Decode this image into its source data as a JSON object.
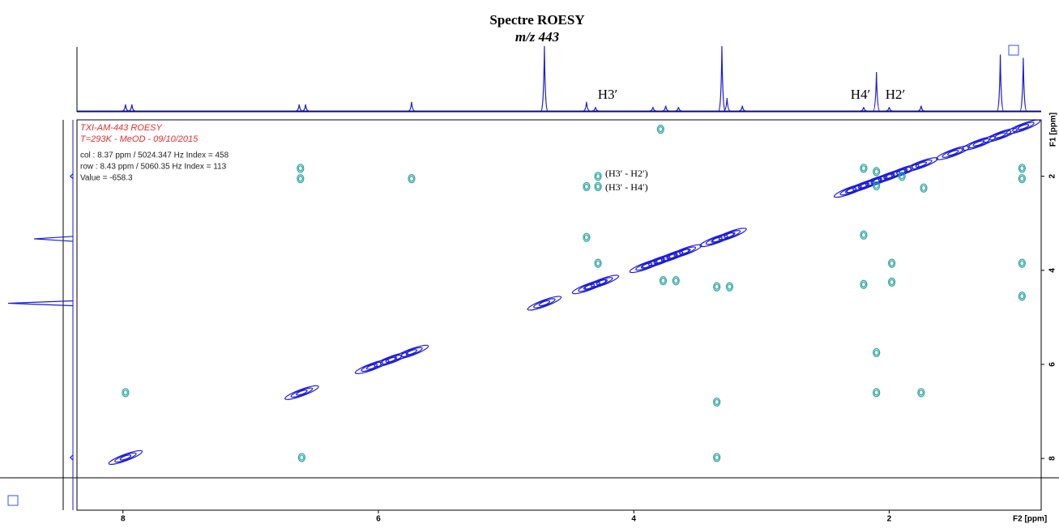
{
  "chart_data": {
    "type": "contour",
    "title": "Spectre ROESY",
    "subtitle": "m/z 443",
    "x_label": "F2 [ppm]",
    "y_label": "F1 [ppm]",
    "xlim": [
      8.36,
      0.81
    ],
    "ylim": [
      0.8,
      9.1
    ],
    "xticks": [
      8,
      6,
      4,
      2
    ],
    "yticks": [
      2,
      4,
      6,
      8
    ],
    "info_lines": [
      "TXI-AM-443 ROESY",
      "T=293K - MeOD - 09/10/2015",
      "col : 8.37 ppm / 5024.347 Hz Index = 458",
      "row : 8.43 ppm / 5060.35 Hz Index = 113",
      "Value = -658.3"
    ],
    "peak_labels": [
      "H3′",
      "H4′",
      "H2′"
    ],
    "annotations": [
      "(H3′ - H2′)",
      "(H3′ - H4′)"
    ],
    "series": [
      {
        "color": "#1a1ad6",
        "x": [
          0.95,
          1.13,
          1.3,
          1.5,
          1.75,
          1.9,
          2.0,
          2.1,
          2.2,
          2.3,
          3.25,
          3.35,
          3.6,
          3.7,
          3.8,
          3.9,
          4.25,
          4.35,
          4.7,
          5.74,
          5.9,
          6.05,
          6.6,
          7.98
        ],
        "values": [
          0.95,
          1.13,
          1.3,
          1.5,
          1.75,
          1.9,
          2.0,
          2.1,
          2.2,
          2.3,
          3.25,
          3.35,
          3.6,
          3.7,
          3.8,
          3.9,
          4.25,
          4.35,
          4.7,
          5.74,
          5.9,
          6.05,
          6.6,
          7.98
        ]
      },
      {
        "color": "#2aa5a0",
        "x": [
          6.61,
          6.61,
          5.74,
          4.37,
          4.28,
          4.28,
          4.37,
          4.28,
          3.77,
          3.67,
          3.35,
          3.25,
          2.1,
          2.1,
          2.2,
          1.9,
          1.73,
          0.96,
          0.96,
          0.96,
          0.96,
          2.2,
          2.2,
          1.98,
          1.98,
          7.98,
          6.6,
          3.35,
          3.35,
          2.1,
          2.1,
          1.75,
          3.79
        ],
        "values": [
          1.83,
          2.05,
          2.05,
          2.22,
          2.0,
          2.22,
          3.3,
          3.85,
          4.22,
          4.22,
          4.35,
          4.35,
          1.9,
          2.2,
          1.83,
          2.0,
          2.25,
          1.83,
          2.05,
          3.85,
          4.55,
          3.25,
          4.3,
          3.85,
          4.25,
          6.6,
          7.98,
          6.8,
          7.98,
          5.75,
          6.6,
          6.6,
          1.0
        ]
      }
    ],
    "top_trace": {
      "x": [
        7.98,
        7.93,
        6.62,
        6.57,
        5.74,
        4.7,
        4.37,
        4.3,
        3.85,
        3.75,
        3.65,
        3.31,
        3.27,
        3.15,
        2.2,
        2.1,
        2.0,
        1.75,
        1.13,
        0.95
      ],
      "values": [
        10,
        10,
        10,
        10,
        14,
        100,
        14,
        6,
        6,
        8,
        6,
        100,
        20,
        8,
        6,
        60,
        6,
        8,
        87,
        82
      ]
    },
    "left_trace": {
      "x": [
        3.33,
        4.7,
        2.0,
        7.98
      ],
      "values": [
        60,
        100,
        4,
        4
      ]
    }
  }
}
